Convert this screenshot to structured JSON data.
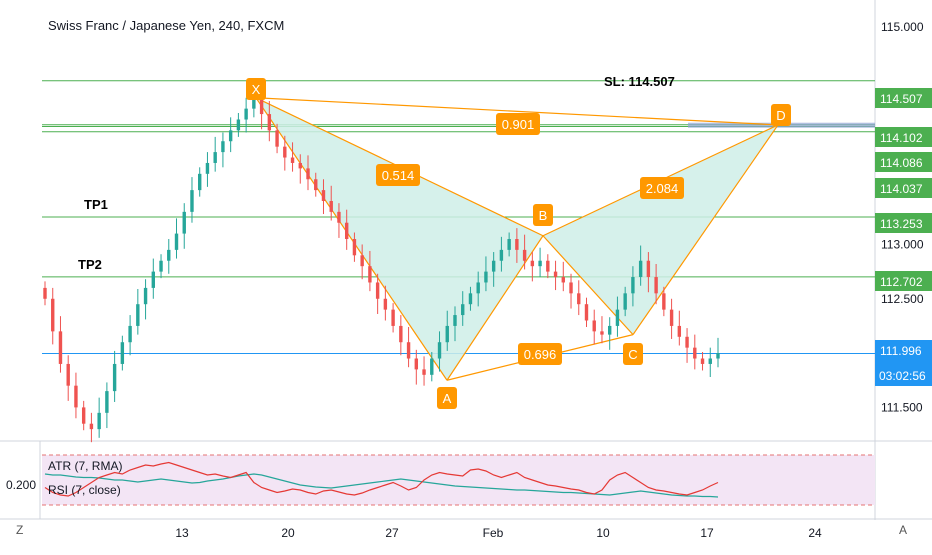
{
  "chart_title": "Swiss Franc / Japanese Yen, 240, FXCM",
  "colors": {
    "up": "#26a69a",
    "down": "#ef5350",
    "level_line": "#4caf50",
    "price_line": "#2196f3",
    "pattern": "#ff9800",
    "pattern_fill": "#cfeee8",
    "rsi_band": "#f3e5f5",
    "atr": "#26a69a",
    "rsi": "#e53935",
    "axis_text": "#131722"
  },
  "chart_data": {
    "type": "candlestick",
    "price_axis": {
      "ticks": [
        "115.000",
        "113.000",
        "112.500",
        "111.500"
      ],
      "ylim": [
        111.2,
        115.25
      ]
    },
    "time_axis": {
      "ticks": [
        "13",
        "20",
        "27",
        "Feb",
        "10",
        "17",
        "24"
      ]
    },
    "levels": [
      {
        "label": "SL: 114.507",
        "value": 114.507,
        "tag": "114.507"
      },
      {
        "label": "",
        "value": 114.102,
        "tag": "114.102"
      },
      {
        "label": "",
        "value": 114.086,
        "tag": "114.086"
      },
      {
        "label": "",
        "value": 114.037,
        "tag": "114.037"
      },
      {
        "label": "TP1",
        "value": 113.253,
        "tag": "113.253"
      },
      {
        "label": "TP2",
        "value": 112.702,
        "tag": "112.702"
      }
    ],
    "current_price": {
      "value": 111.996,
      "tag": "111.996",
      "countdown": "03:02:56"
    },
    "pattern": {
      "points": [
        {
          "name": "X",
          "value": 114.35
        },
        {
          "name": "A",
          "value": 111.75
        },
        {
          "name": "B",
          "value": 113.08
        },
        {
          "name": "C",
          "value": 112.17
        },
        {
          "name": "D",
          "value": 114.1
        }
      ],
      "ratios": [
        {
          "label": "0.514"
        },
        {
          "label": "0.696"
        },
        {
          "label": "2.084"
        },
        {
          "label": "0.901"
        }
      ]
    },
    "closes": [
      112.5,
      112.2,
      111.9,
      111.7,
      111.5,
      111.35,
      111.3,
      111.45,
      111.65,
      111.9,
      112.1,
      112.25,
      112.45,
      112.6,
      112.75,
      112.85,
      112.95,
      113.1,
      113.3,
      113.5,
      113.65,
      113.75,
      113.85,
      113.95,
      114.05,
      114.15,
      114.25,
      114.35,
      114.2,
      114.05,
      113.9,
      113.8,
      113.75,
      113.7,
      113.6,
      113.5,
      113.4,
      113.3,
      113.2,
      113.05,
      112.9,
      112.8,
      112.65,
      112.5,
      112.4,
      112.25,
      112.1,
      111.95,
      111.85,
      111.8,
      111.95,
      112.1,
      112.25,
      112.35,
      112.45,
      112.55,
      112.65,
      112.75,
      112.85,
      112.95,
      113.05,
      112.95,
      112.85,
      112.8,
      112.85,
      112.75,
      112.7,
      112.65,
      112.55,
      112.45,
      112.3,
      112.2,
      112.17,
      112.25,
      112.4,
      112.55,
      112.7,
      112.85,
      112.7,
      112.55,
      112.4,
      112.25,
      112.15,
      112.05,
      111.95,
      111.9,
      111.95,
      112.0
    ],
    "indicators": {
      "label_atr": "ATR (7, RMA)",
      "label_rsi": "RSI (7, close)",
      "axis_tick": "0.200",
      "atr": [
        0.62,
        0.6,
        0.6,
        0.58,
        0.56,
        0.55,
        0.55,
        0.54,
        0.52,
        0.5,
        0.5,
        0.48,
        0.46,
        0.48,
        0.5,
        0.52,
        0.5,
        0.48,
        0.46,
        0.44,
        0.45,
        0.48,
        0.5,
        0.52,
        0.55,
        0.58,
        0.6,
        0.62,
        0.6,
        0.56,
        0.52,
        0.48,
        0.44,
        0.4,
        0.38,
        0.36,
        0.35,
        0.34,
        0.36,
        0.38,
        0.4,
        0.42,
        0.44,
        0.46,
        0.48,
        0.5,
        0.52,
        0.5,
        0.48,
        0.46,
        0.44,
        0.42,
        0.4,
        0.38,
        0.37,
        0.36,
        0.35,
        0.34,
        0.33,
        0.32,
        0.31,
        0.3,
        0.3,
        0.29,
        0.28,
        0.27,
        0.26,
        0.25,
        0.25,
        0.24,
        0.23,
        0.22,
        0.21,
        0.2,
        0.22,
        0.24,
        0.26,
        0.28,
        0.26,
        0.24,
        0.22,
        0.2,
        0.19,
        0.18,
        0.18,
        0.17,
        0.17,
        0.16
      ],
      "rsi": [
        0.35,
        0.25,
        0.2,
        0.18,
        0.25,
        0.35,
        0.45,
        0.55,
        0.6,
        0.65,
        0.62,
        0.7,
        0.75,
        0.8,
        0.78,
        0.82,
        0.85,
        0.8,
        0.75,
        0.7,
        0.65,
        0.6,
        0.62,
        0.58,
        0.55,
        0.6,
        0.65,
        0.45,
        0.35,
        0.3,
        0.25,
        0.28,
        0.32,
        0.3,
        0.25,
        0.22,
        0.28,
        0.3,
        0.26,
        0.22,
        0.2,
        0.24,
        0.3,
        0.35,
        0.4,
        0.45,
        0.38,
        0.3,
        0.35,
        0.5,
        0.6,
        0.65,
        0.62,
        0.6,
        0.58,
        0.7,
        0.72,
        0.68,
        0.6,
        0.55,
        0.6,
        0.65,
        0.55,
        0.5,
        0.45,
        0.4,
        0.38,
        0.35,
        0.32,
        0.3,
        0.25,
        0.22,
        0.3,
        0.5,
        0.6,
        0.65,
        0.55,
        0.45,
        0.35,
        0.3,
        0.28,
        0.25,
        0.22,
        0.2,
        0.25,
        0.3,
        0.38,
        0.45
      ]
    }
  },
  "footer": {
    "left_button": "Z",
    "right_button": "A"
  }
}
